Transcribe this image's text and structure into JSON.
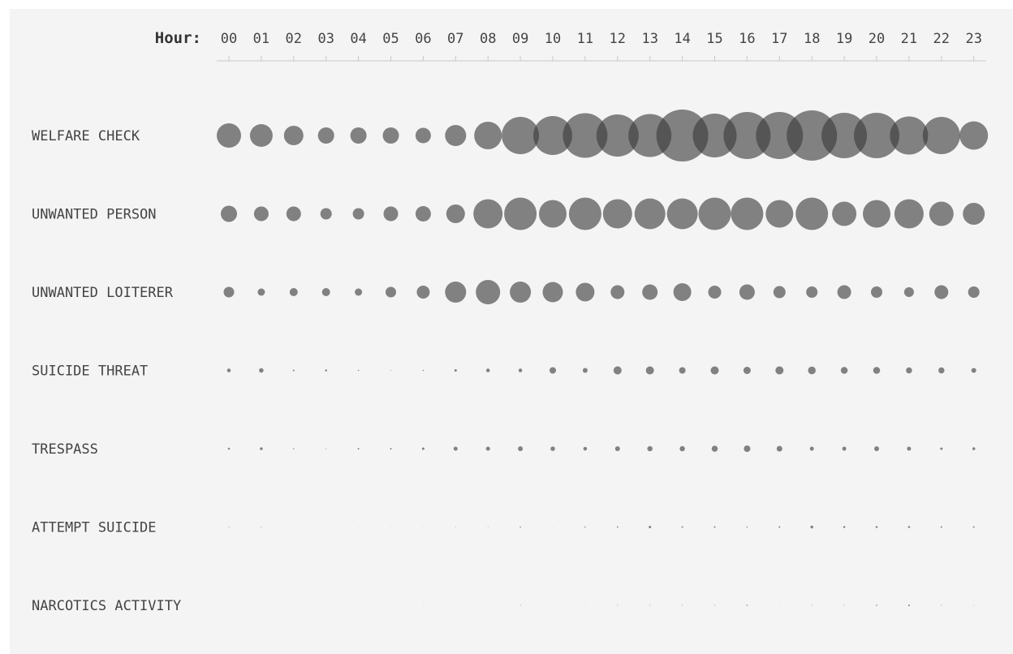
{
  "chart_data": {
    "type": "bubble",
    "axis_title": "Hour:",
    "hours": [
      "00",
      "01",
      "02",
      "03",
      "04",
      "05",
      "06",
      "07",
      "08",
      "09",
      "10",
      "11",
      "12",
      "13",
      "14",
      "15",
      "16",
      "17",
      "18",
      "19",
      "20",
      "21",
      "22",
      "23"
    ],
    "categories": [
      "WELFARE CHECK",
      "UNWANTED PERSON",
      "UNWANTED LOITERER",
      "SUICIDE THREAT",
      "TRESPASS",
      "ATTEMPT SUICIDE",
      "NARCOTICS ACTIVITY"
    ],
    "size_unit": "relative bubble diameter",
    "values": [
      [
        30,
        28,
        24,
        20,
        20,
        20,
        19,
        26,
        34,
        46,
        48,
        55,
        52,
        53,
        64,
        54,
        58,
        58,
        62,
        56,
        56,
        47,
        46,
        35
      ],
      [
        20,
        18,
        18,
        14,
        14,
        18,
        19,
        23,
        36,
        40,
        34,
        40,
        36,
        38,
        38,
        40,
        40,
        34,
        40,
        30,
        34,
        36,
        30,
        27
      ],
      [
        13,
        9,
        10,
        10,
        9,
        13,
        16,
        26,
        30,
        26,
        25,
        23,
        17,
        19,
        22,
        16,
        19,
        15,
        14,
        17,
        14,
        12,
        17,
        14
      ],
      [
        4.5,
        5.5,
        2,
        2.5,
        1.5,
        1,
        1.5,
        3,
        4.5,
        4.5,
        8,
        6,
        10,
        10,
        8,
        10,
        9,
        10,
        9.5,
        8.5,
        8.5,
        7.5,
        7.5,
        6
      ],
      [
        2.5,
        3.5,
        1.5,
        1,
        2,
        2,
        3,
        5,
        5,
        6,
        5.5,
        4.5,
        6,
        6.5,
        6.5,
        7.5,
        8,
        7,
        5,
        5,
        6,
        5,
        3,
        3.5
      ],
      [
        1,
        1,
        0.5,
        0.5,
        0.5,
        0.5,
        0.5,
        0.8,
        0.8,
        1.5,
        0.5,
        1.5,
        1.8,
        3,
        2,
        2,
        1.5,
        2,
        3.5,
        2.5,
        2.5,
        2.5,
        2,
        2
      ],
      [
        0.5,
        0.5,
        0.5,
        0.3,
        0,
        0,
        0.5,
        0.5,
        0.5,
        1,
        0.5,
        0.5,
        1,
        1,
        1,
        1,
        1.5,
        0.5,
        1,
        1,
        1.5,
        2,
        1,
        0.8
      ]
    ],
    "bubble_color": "#3a3a3a",
    "bubble_opacity": 0.62,
    "axis_color": "#c8c8c8",
    "background": "#f4f4f4",
    "grid": false,
    "legend": "none"
  }
}
